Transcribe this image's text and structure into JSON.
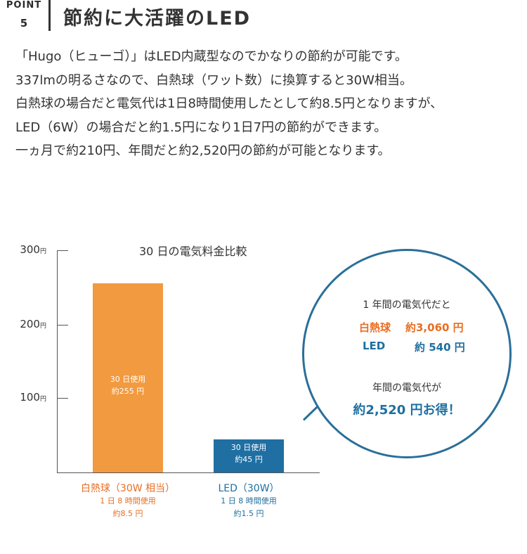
{
  "header": {
    "point_label": "POINT",
    "point_number": "5",
    "title": "節約に大活躍のLED"
  },
  "paragraph": [
    "「Hugo（ヒューゴ）」はLED内蔵型なのでかなりの節約が可能です。",
    "337lmの明るさなので、白熱球（ワット数）に換算すると30W相当。",
    "白熱球の場合だと電気代は1日8時間使用したとして約8.5円となりますが、",
    "LED（6W）の場合だと約1.5円になり1日7円の節約ができます。",
    "一ヵ月で約210円、年間だと約2,520円の節約が可能となります。"
  ],
  "chart_data": {
    "type": "bar",
    "title": "30 日の電気料金比較",
    "y_ticks": [
      {
        "value": 300,
        "label": "300",
        "unit": "円"
      },
      {
        "value": 200,
        "label": "200",
        "unit": "円"
      },
      {
        "value": 100,
        "label": "100",
        "unit": "円"
      }
    ],
    "ylim": [
      0,
      300
    ],
    "colors": {
      "incandescent": "#f29a3f",
      "led": "#1f6fa3"
    },
    "bars": [
      {
        "category": "白熱球（30W 相当）",
        "value": 255,
        "inner_line1": "30 日使用",
        "inner_line2": "約255 円",
        "sub1": "1 日 8 時間使用",
        "sub2": "約8.5 円"
      },
      {
        "category": "LED（30W）",
        "value": 45,
        "inner_line1": "30 日使用",
        "inner_line2": "約45 円",
        "sub1": "1 日 8 時間使用",
        "sub2": "約1.5 円"
      }
    ]
  },
  "bubble": {
    "heading": "1 年間の電気代だと",
    "incandescent_label": "白熱球",
    "incandescent_value": "約3,060 円",
    "led_label": "LED",
    "led_value": "約 540 円",
    "sub_heading": "年間の電気代が",
    "savings": "約2,520 円お得！",
    "border_color": "#2a6f98"
  }
}
